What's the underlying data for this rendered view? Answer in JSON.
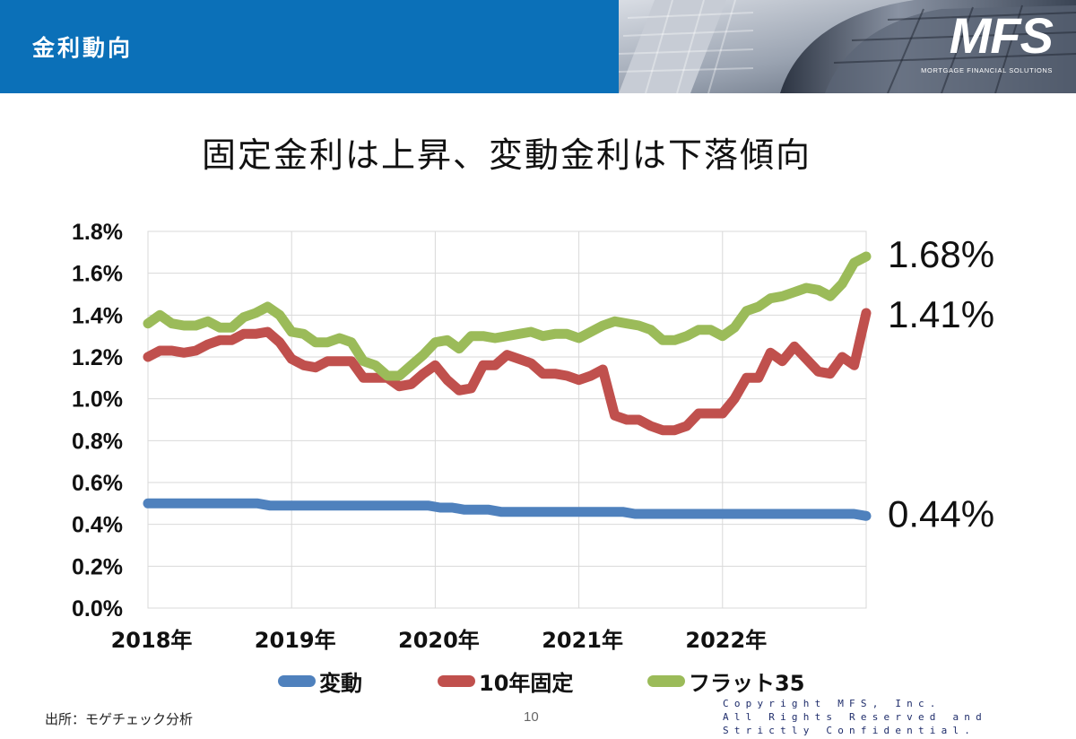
{
  "header": {
    "title": "金利動向",
    "logo": "MFS",
    "logo_subtitle": "MORTGAGE FINANCIAL SOLUTIONS",
    "color": "#0b70b8"
  },
  "slide_title": "固定金利は上昇、変動金利は下落傾向",
  "chart_data": {
    "type": "line",
    "title": "",
    "xlabel": "",
    "ylabel": "",
    "ylim": [
      0,
      1.8
    ],
    "yticks": [
      "0.0%",
      "0.2%",
      "0.4%",
      "0.6%",
      "0.8%",
      "1.0%",
      "1.2%",
      "1.4%",
      "1.6%",
      "1.8%"
    ],
    "x_tick_labels": [
      "2018年",
      "2019年",
      "2020年",
      "2021年",
      "2022年"
    ],
    "x_range": [
      0,
      60
    ],
    "grid": true,
    "legend_position": "bottom",
    "series": [
      {
        "name": "変動",
        "color": "#4f81bd",
        "end_label": "0.44%",
        "values": [
          0.5,
          0.5,
          0.5,
          0.5,
          0.5,
          0.5,
          0.5,
          0.5,
          0.5,
          0.5,
          0.49,
          0.49,
          0.49,
          0.49,
          0.49,
          0.49,
          0.49,
          0.49,
          0.49,
          0.49,
          0.49,
          0.49,
          0.49,
          0.49,
          0.48,
          0.48,
          0.47,
          0.47,
          0.47,
          0.46,
          0.46,
          0.46,
          0.46,
          0.46,
          0.46,
          0.46,
          0.46,
          0.46,
          0.46,
          0.46,
          0.45,
          0.45,
          0.45,
          0.45,
          0.45,
          0.45,
          0.45,
          0.45,
          0.45,
          0.45,
          0.45,
          0.45,
          0.45,
          0.45,
          0.45,
          0.45,
          0.45,
          0.45,
          0.45,
          0.44
        ]
      },
      {
        "name": "10年固定",
        "color": "#c0504d",
        "end_label": "1.41%",
        "values": [
          1.2,
          1.23,
          1.23,
          1.22,
          1.23,
          1.26,
          1.28,
          1.28,
          1.31,
          1.31,
          1.32,
          1.27,
          1.19,
          1.16,
          1.15,
          1.18,
          1.18,
          1.18,
          1.1,
          1.1,
          1.1,
          1.06,
          1.07,
          1.12,
          1.16,
          1.09,
          1.04,
          1.05,
          1.16,
          1.16,
          1.21,
          1.19,
          1.17,
          1.12,
          1.12,
          1.11,
          1.09,
          1.11,
          1.14,
          0.92,
          0.9,
          0.9,
          0.87,
          0.85,
          0.85,
          0.87,
          0.93,
          0.93,
          0.93,
          1.0,
          1.1,
          1.1,
          1.22,
          1.18,
          1.25,
          1.19,
          1.13,
          1.12,
          1.2,
          1.16,
          1.41
        ]
      },
      {
        "name": "フラット35",
        "color": "#9bbb59",
        "end_label": "1.68%",
        "values": [
          1.36,
          1.4,
          1.36,
          1.35,
          1.35,
          1.37,
          1.34,
          1.34,
          1.39,
          1.41,
          1.44,
          1.4,
          1.32,
          1.31,
          1.27,
          1.27,
          1.29,
          1.27,
          1.18,
          1.16,
          1.11,
          1.11,
          1.16,
          1.21,
          1.27,
          1.28,
          1.24,
          1.3,
          1.3,
          1.29,
          1.3,
          1.31,
          1.32,
          1.3,
          1.31,
          1.31,
          1.29,
          1.32,
          1.35,
          1.37,
          1.36,
          1.35,
          1.33,
          1.28,
          1.28,
          1.3,
          1.33,
          1.33,
          1.3,
          1.34,
          1.42,
          1.44,
          1.48,
          1.49,
          1.51,
          1.53,
          1.52,
          1.49,
          1.55,
          1.65,
          1.68
        ]
      }
    ]
  },
  "footer": {
    "source": "出所：モゲチェック分析",
    "page_number": "10",
    "copyright_lines": [
      "Copyright MFS, Inc.",
      "All Rights Reserved and",
      "Strictly Confidential."
    ]
  }
}
